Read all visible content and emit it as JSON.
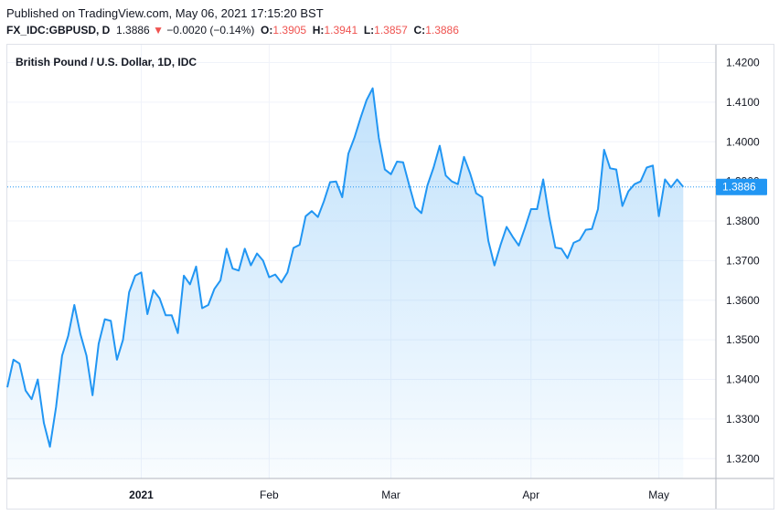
{
  "header": {
    "published": "Published on TradingView.com, May 06, 2021 17:15:20 BST"
  },
  "quote": {
    "symbol": "FX_IDC:GBPUSD, D",
    "last": "1.3886",
    "arrow": "▼",
    "change": "−0.0020 (−0.14%)",
    "o_label": "O:",
    "o_value": "1.3905",
    "h_label": "H:",
    "h_value": "1.3941",
    "l_label": "L:",
    "l_value": "1.3857",
    "c_label": "C:",
    "c_value": "1.3886"
  },
  "chart_data": {
    "type": "area",
    "title": "British Pound / U.S. Dollar, 1D, IDC",
    "line_color": "#2196f3",
    "fill_color": "#2196f3",
    "last_price_label": "1.3886",
    "ylim": [
      1.315,
      1.4245
    ],
    "y_ticks": [
      "1.3200",
      "1.3300",
      "1.3400",
      "1.3500",
      "1.3600",
      "1.3700",
      "1.3800",
      "1.3900",
      "1.4000",
      "1.4100",
      "1.4200"
    ],
    "x_ticks": [
      {
        "label": "2021",
        "index": 22,
        "bold": true
      },
      {
        "label": "Feb",
        "index": 43,
        "bold": false
      },
      {
        "label": "Mar",
        "index": 63,
        "bold": false
      },
      {
        "label": "Apr",
        "index": 86,
        "bold": false
      },
      {
        "label": "May",
        "index": 107,
        "bold": false
      }
    ],
    "grid": true,
    "values": [
      1.338,
      1.345,
      1.344,
      1.3372,
      1.335,
      1.34,
      1.329,
      1.323,
      1.333,
      1.346,
      1.351,
      1.3588,
      1.3515,
      1.346,
      1.336,
      1.349,
      1.3552,
      1.3548,
      1.345,
      1.35,
      1.362,
      1.3662,
      1.367,
      1.3565,
      1.3625,
      1.3605,
      1.3562,
      1.3562,
      1.3517,
      1.3662,
      1.364,
      1.3685,
      1.358,
      1.3588,
      1.3628,
      1.365,
      1.373,
      1.368,
      1.3675,
      1.373,
      1.3688,
      1.3718,
      1.37,
      1.3658,
      1.3665,
      1.3645,
      1.367,
      1.3732,
      1.374,
      1.3812,
      1.3825,
      1.381,
      1.385,
      1.3898,
      1.39,
      1.386,
      1.397,
      1.401,
      1.406,
      1.4105,
      1.4135,
      1.401,
      1.393,
      1.3918,
      1.395,
      1.3948,
      1.389,
      1.3835,
      1.382,
      1.389,
      1.3935,
      1.399,
      1.3915,
      1.39,
      1.3893,
      1.3962,
      1.392,
      1.387,
      1.386,
      1.375,
      1.3688,
      1.374,
      1.3785,
      1.376,
      1.3738,
      1.3782,
      1.383,
      1.383,
      1.3905,
      1.381,
      1.3733,
      1.373,
      1.3706,
      1.3745,
      1.3752,
      1.3778,
      1.378,
      1.383,
      1.398,
      1.3933,
      1.393,
      1.3838,
      1.3875,
      1.3893,
      1.39,
      1.3935,
      1.394,
      1.3812,
      1.3905,
      1.3885,
      1.3905,
      1.3886
    ]
  }
}
